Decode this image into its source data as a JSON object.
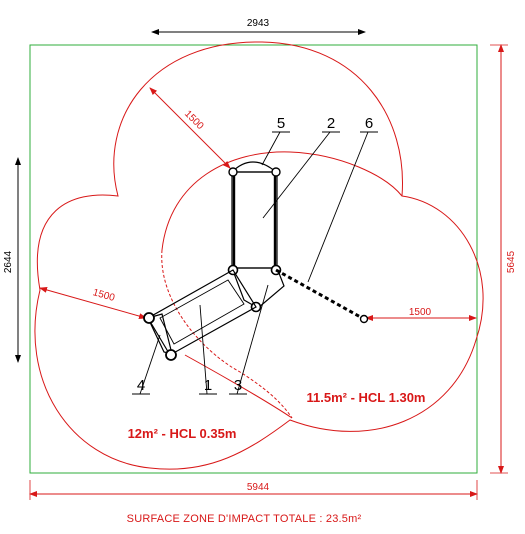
{
  "dimensions": {
    "top_width": "2943",
    "left_height": "2644",
    "right_height": "5645",
    "bottom_width": "5944",
    "radius_top": "1500",
    "radius_left": "1500",
    "radius_right": "1500"
  },
  "zones": {
    "right_zone": "11.5m² - HCL 1.30m",
    "left_zone": "12m² - HCL 0.35m"
  },
  "callouts": [
    "1",
    "2",
    "3",
    "4",
    "5",
    "6"
  ],
  "footer": "SURFACE ZONE D'IMPACT TOTALE : 23.5m²",
  "colors": {
    "border": "#2fae3b",
    "impact": "#d81818",
    "ink": "#000000"
  }
}
